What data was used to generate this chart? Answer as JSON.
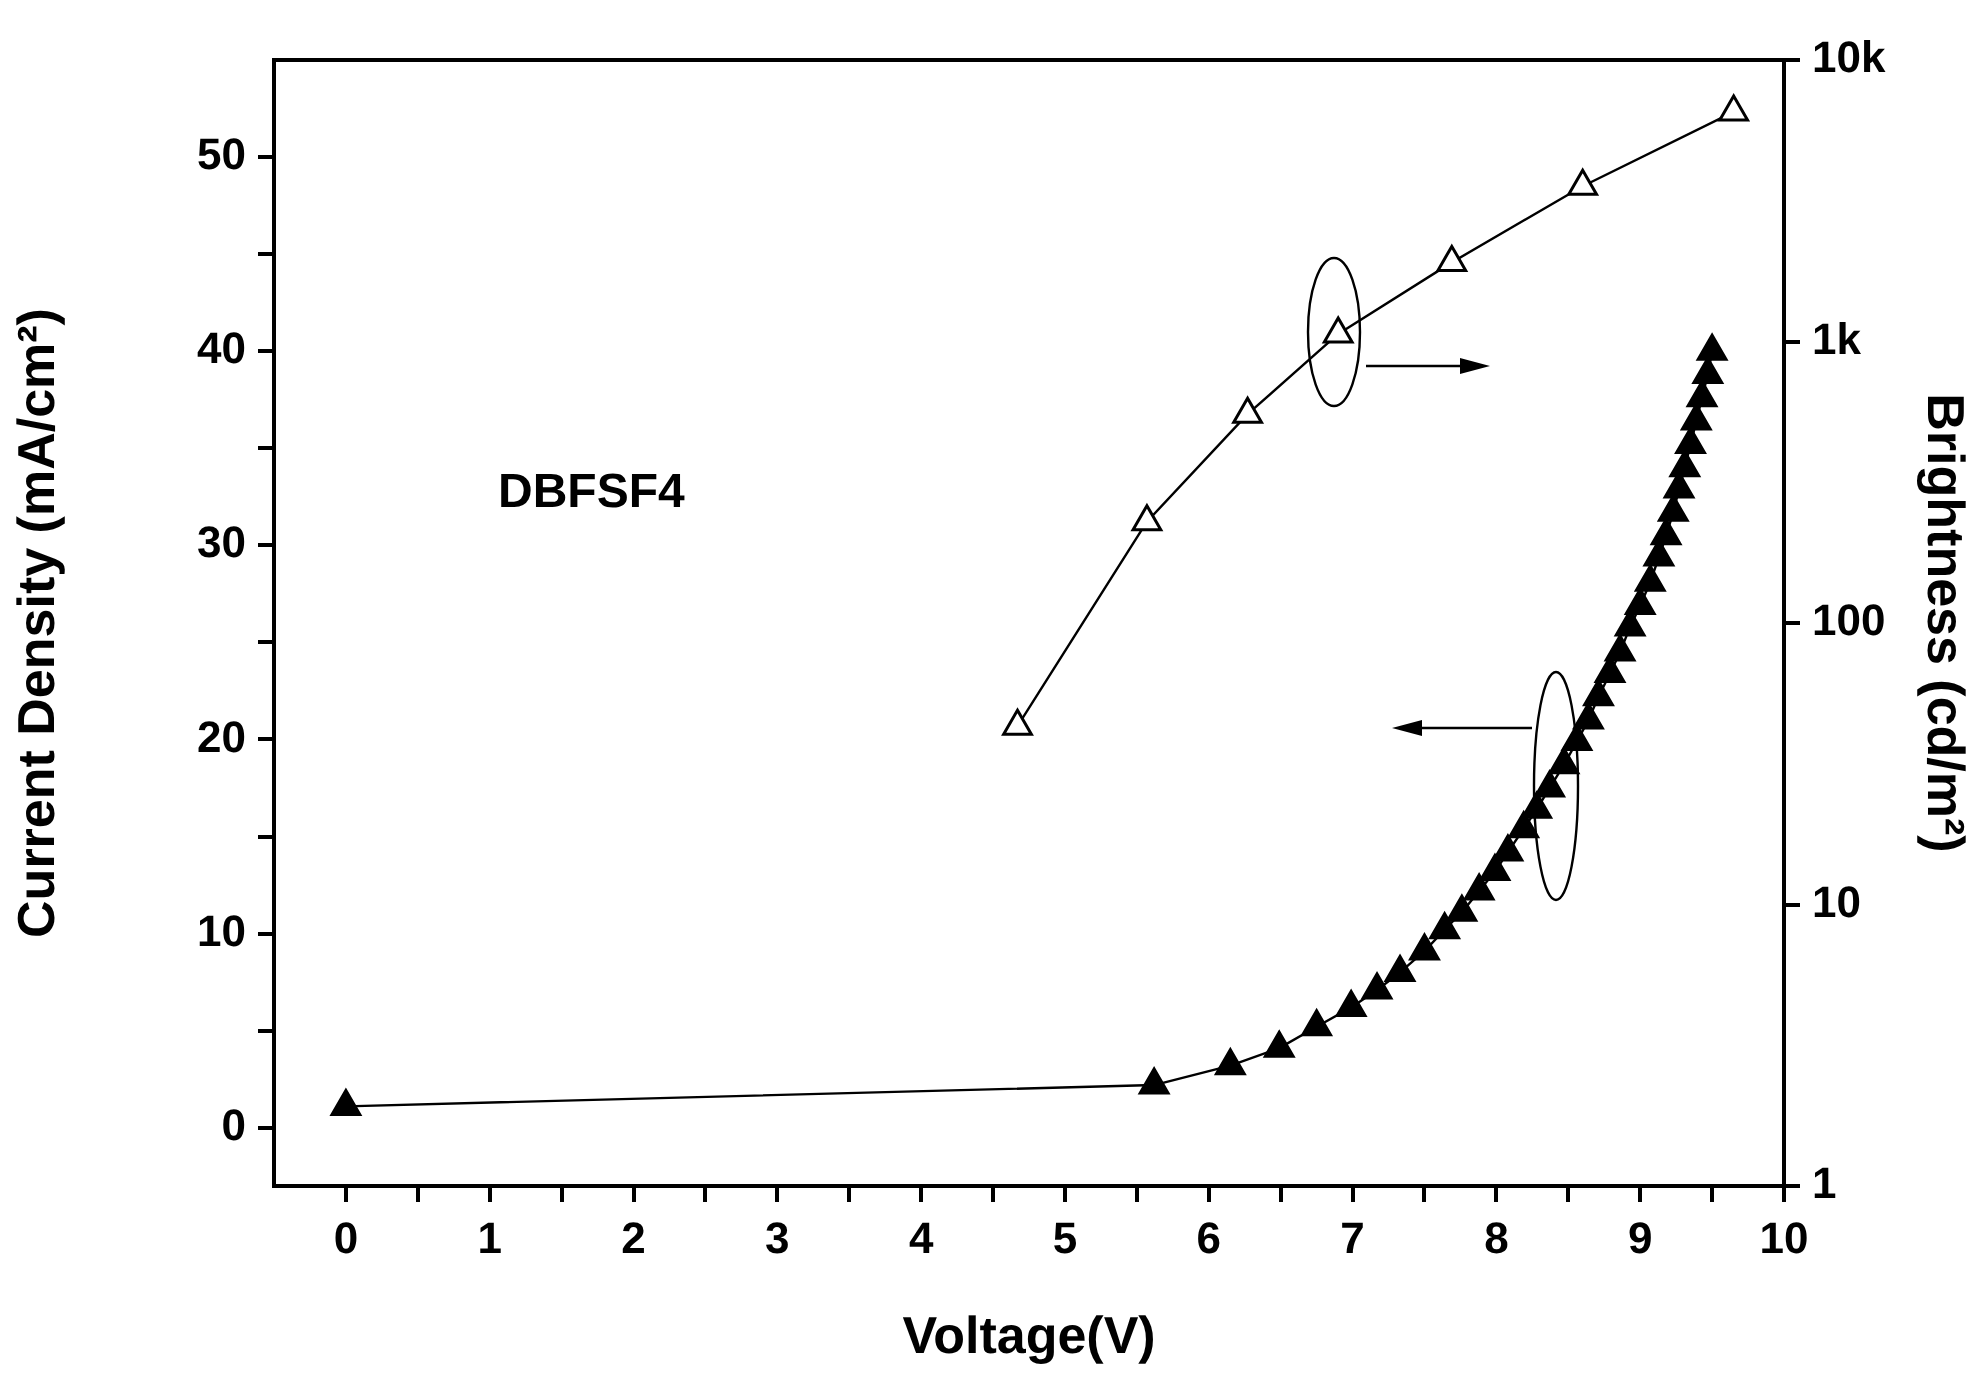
{
  "chart_data": {
    "type": "line",
    "xlabel": "Voltage(V)",
    "ylabel": "Current Density (mA/cm²)",
    "y2label": "Brightness (cd/m²)",
    "annotations": [
      "DBFSF4"
    ],
    "xlim": [
      -0.5,
      10
    ],
    "xticks": [
      0,
      {
        "value": 0.5,
        "label": null
      },
      1,
      {
        "value": 1.5,
        "label": null
      },
      2,
      {
        "value": 2.5,
        "label": null
      },
      3,
      {
        "value": 3.5,
        "label": null
      },
      4,
      {
        "value": 4.5,
        "label": null
      },
      5,
      {
        "value": 5.5,
        "label": null
      },
      6,
      {
        "value": 6.5,
        "label": null
      },
      7,
      {
        "value": 7.5,
        "label": null
      },
      8,
      {
        "value": 8.5,
        "label": null
      },
      9,
      {
        "value": 9.5,
        "label": null
      },
      10
    ],
    "ylim": [
      -3,
      55
    ],
    "yticks": [
      0,
      {
        "value": 5,
        "label": null
      },
      10,
      {
        "value": 15,
        "label": null
      },
      20,
      {
        "value": 25,
        "label": null
      },
      30,
      {
        "value": 35,
        "label": null
      },
      40,
      {
        "value": 45,
        "label": null
      },
      50
    ],
    "y2lim": [
      1,
      10000
    ],
    "y2ticks": [
      1,
      10,
      100,
      {
        "value": 1000,
        "label": "1k"
      },
      {
        "value": 10000,
        "label": "10k"
      }
    ],
    "log": "y2",
    "marker": "triangle",
    "line_style": "solid",
    "series": [
      {
        "color": "#000000",
        "x": [
          0,
          5.62,
          6.15,
          6.49,
          6.75,
          6.99,
          7.17,
          7.33,
          7.5,
          7.64,
          7.76,
          7.88,
          7.99,
          8.08,
          8.19,
          8.28,
          8.37,
          8.47,
          8.56,
          8.64,
          8.71,
          8.79,
          8.86,
          8.93,
          9.0,
          9.07,
          9.13,
          9.18,
          9.23,
          9.27,
          9.31,
          9.35,
          9.39,
          9.43,
          9.47,
          9.5
        ],
        "values": [
          1.1,
          2.2,
          3.2,
          4.1,
          5.2,
          6.2,
          7.1,
          8.0,
          9.1,
          10.2,
          11.1,
          12.2,
          13.2,
          14.2,
          15.4,
          16.4,
          17.5,
          18.7,
          19.9,
          21.0,
          22.2,
          23.4,
          24.5,
          25.8,
          26.9,
          28.1,
          29.4,
          30.5,
          31.7,
          32.9,
          34.0,
          35.2,
          36.4,
          37.6,
          38.8,
          40.0
        ]
      },
      {
        "color": "#000000",
        "axis": "y2",
        "x": [
          4.67,
          5.57,
          6.27,
          6.9,
          7.69,
          8.6,
          9.65
        ],
        "values": [
          43,
          229,
          552,
          1064,
          1910,
          3560,
          6540
        ]
      }
    ]
  }
}
